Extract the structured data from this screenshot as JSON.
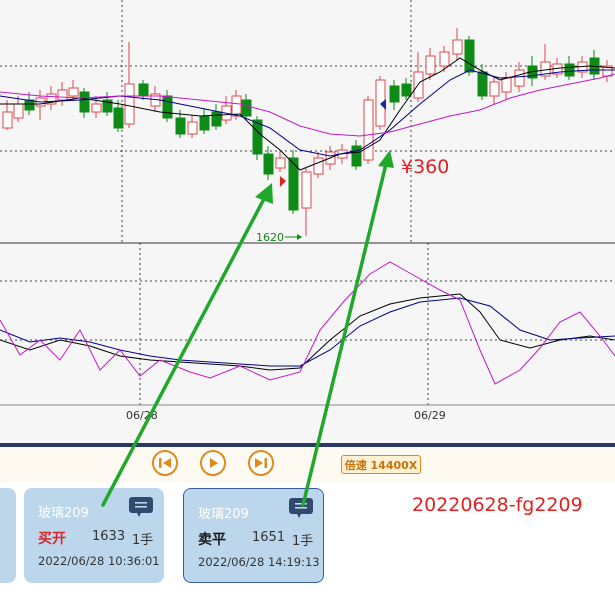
{
  "chart": {
    "date_labels": [
      "06/28",
      "06/29"
    ],
    "price_annotation": "¥360",
    "low_marker_label": "1620",
    "colors": {
      "background": "#f6f6f6",
      "up_candle": "#e0474c",
      "down_candle": "#0e8a17",
      "ma_short": "#000000",
      "ma_mid": "#00008b",
      "ma_long": "#c21ac8",
      "annotation_arrow": "#1fa82a",
      "annotation_text": "#e02222"
    }
  },
  "toolbar": {
    "prev_icon": "skip-back-icon",
    "play_icon": "play-icon",
    "next_icon": "skip-forward-icon",
    "speed_label": "倍速 14400X"
  },
  "trades": [
    {
      "symbol": "玻璃209",
      "action": "买开",
      "price": "1633",
      "lots": "1手",
      "time": "2022/06/28 10:36:01",
      "action_color": "#e02222",
      "selected": false
    },
    {
      "symbol": "玻璃209",
      "action": "卖平",
      "price": "1651",
      "lots": "1手",
      "time": "2022/06/28 14:19:13",
      "action_color": "#1a1a1a",
      "selected": true
    }
  ],
  "caption": "20220628-fg2209"
}
